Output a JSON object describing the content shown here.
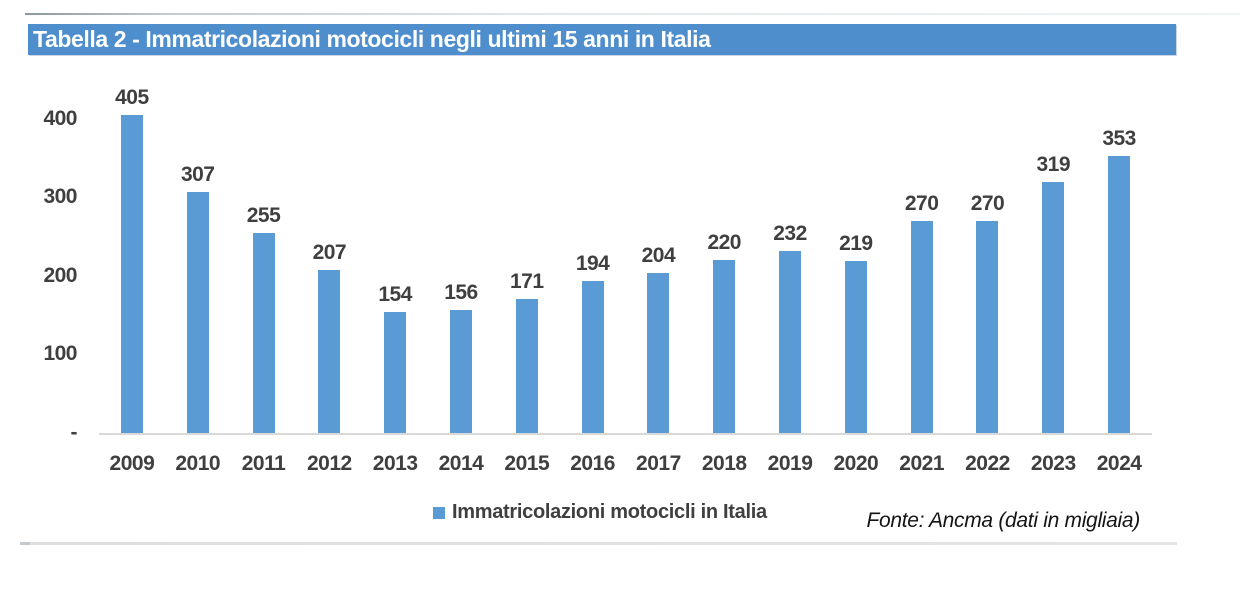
{
  "page": {
    "title": "Tabella 2 - Immatricolazioni motocicli negli ultimi 15 anni in Italia"
  },
  "colors": {
    "accent_blue": "#5B9BD5",
    "title_bar_blue": "#4F8ECD",
    "label_gray": "#3F3F3F",
    "axis_line_gray": "#D9D9D9"
  },
  "chart_data": {
    "type": "bar",
    "title": "Tabella 2 - Immatricolazioni motocicli negli ultimi 15 anni in Italia",
    "categories": [
      "2009",
      "2010",
      "2011",
      "2012",
      "2013",
      "2014",
      "2015",
      "2016",
      "2017",
      "2018",
      "2019",
      "2020",
      "2021",
      "2022",
      "2023",
      "2024"
    ],
    "values": [
      405,
      307,
      255,
      207,
      154,
      156,
      171,
      194,
      204,
      220,
      232,
      219,
      270,
      270,
      319,
      353
    ],
    "series_name": "Immatricolazioni motocicli in Italia",
    "xlabel": "",
    "ylabel": "",
    "ylim": [
      0,
      400
    ],
    "yticks": [
      400,
      300,
      200,
      100,
      0
    ],
    "ytick_labels": [
      "400",
      "300",
      "200",
      "100",
      "-"
    ],
    "grid": false,
    "data_labels": true,
    "legend_position": "bottom",
    "bar_color": "#5B9BD5"
  },
  "legend": {
    "label": "Immatricolazioni motocicli in Italia"
  },
  "footer": {
    "source": "Fonte: Ancma (dati in migliaia)"
  }
}
